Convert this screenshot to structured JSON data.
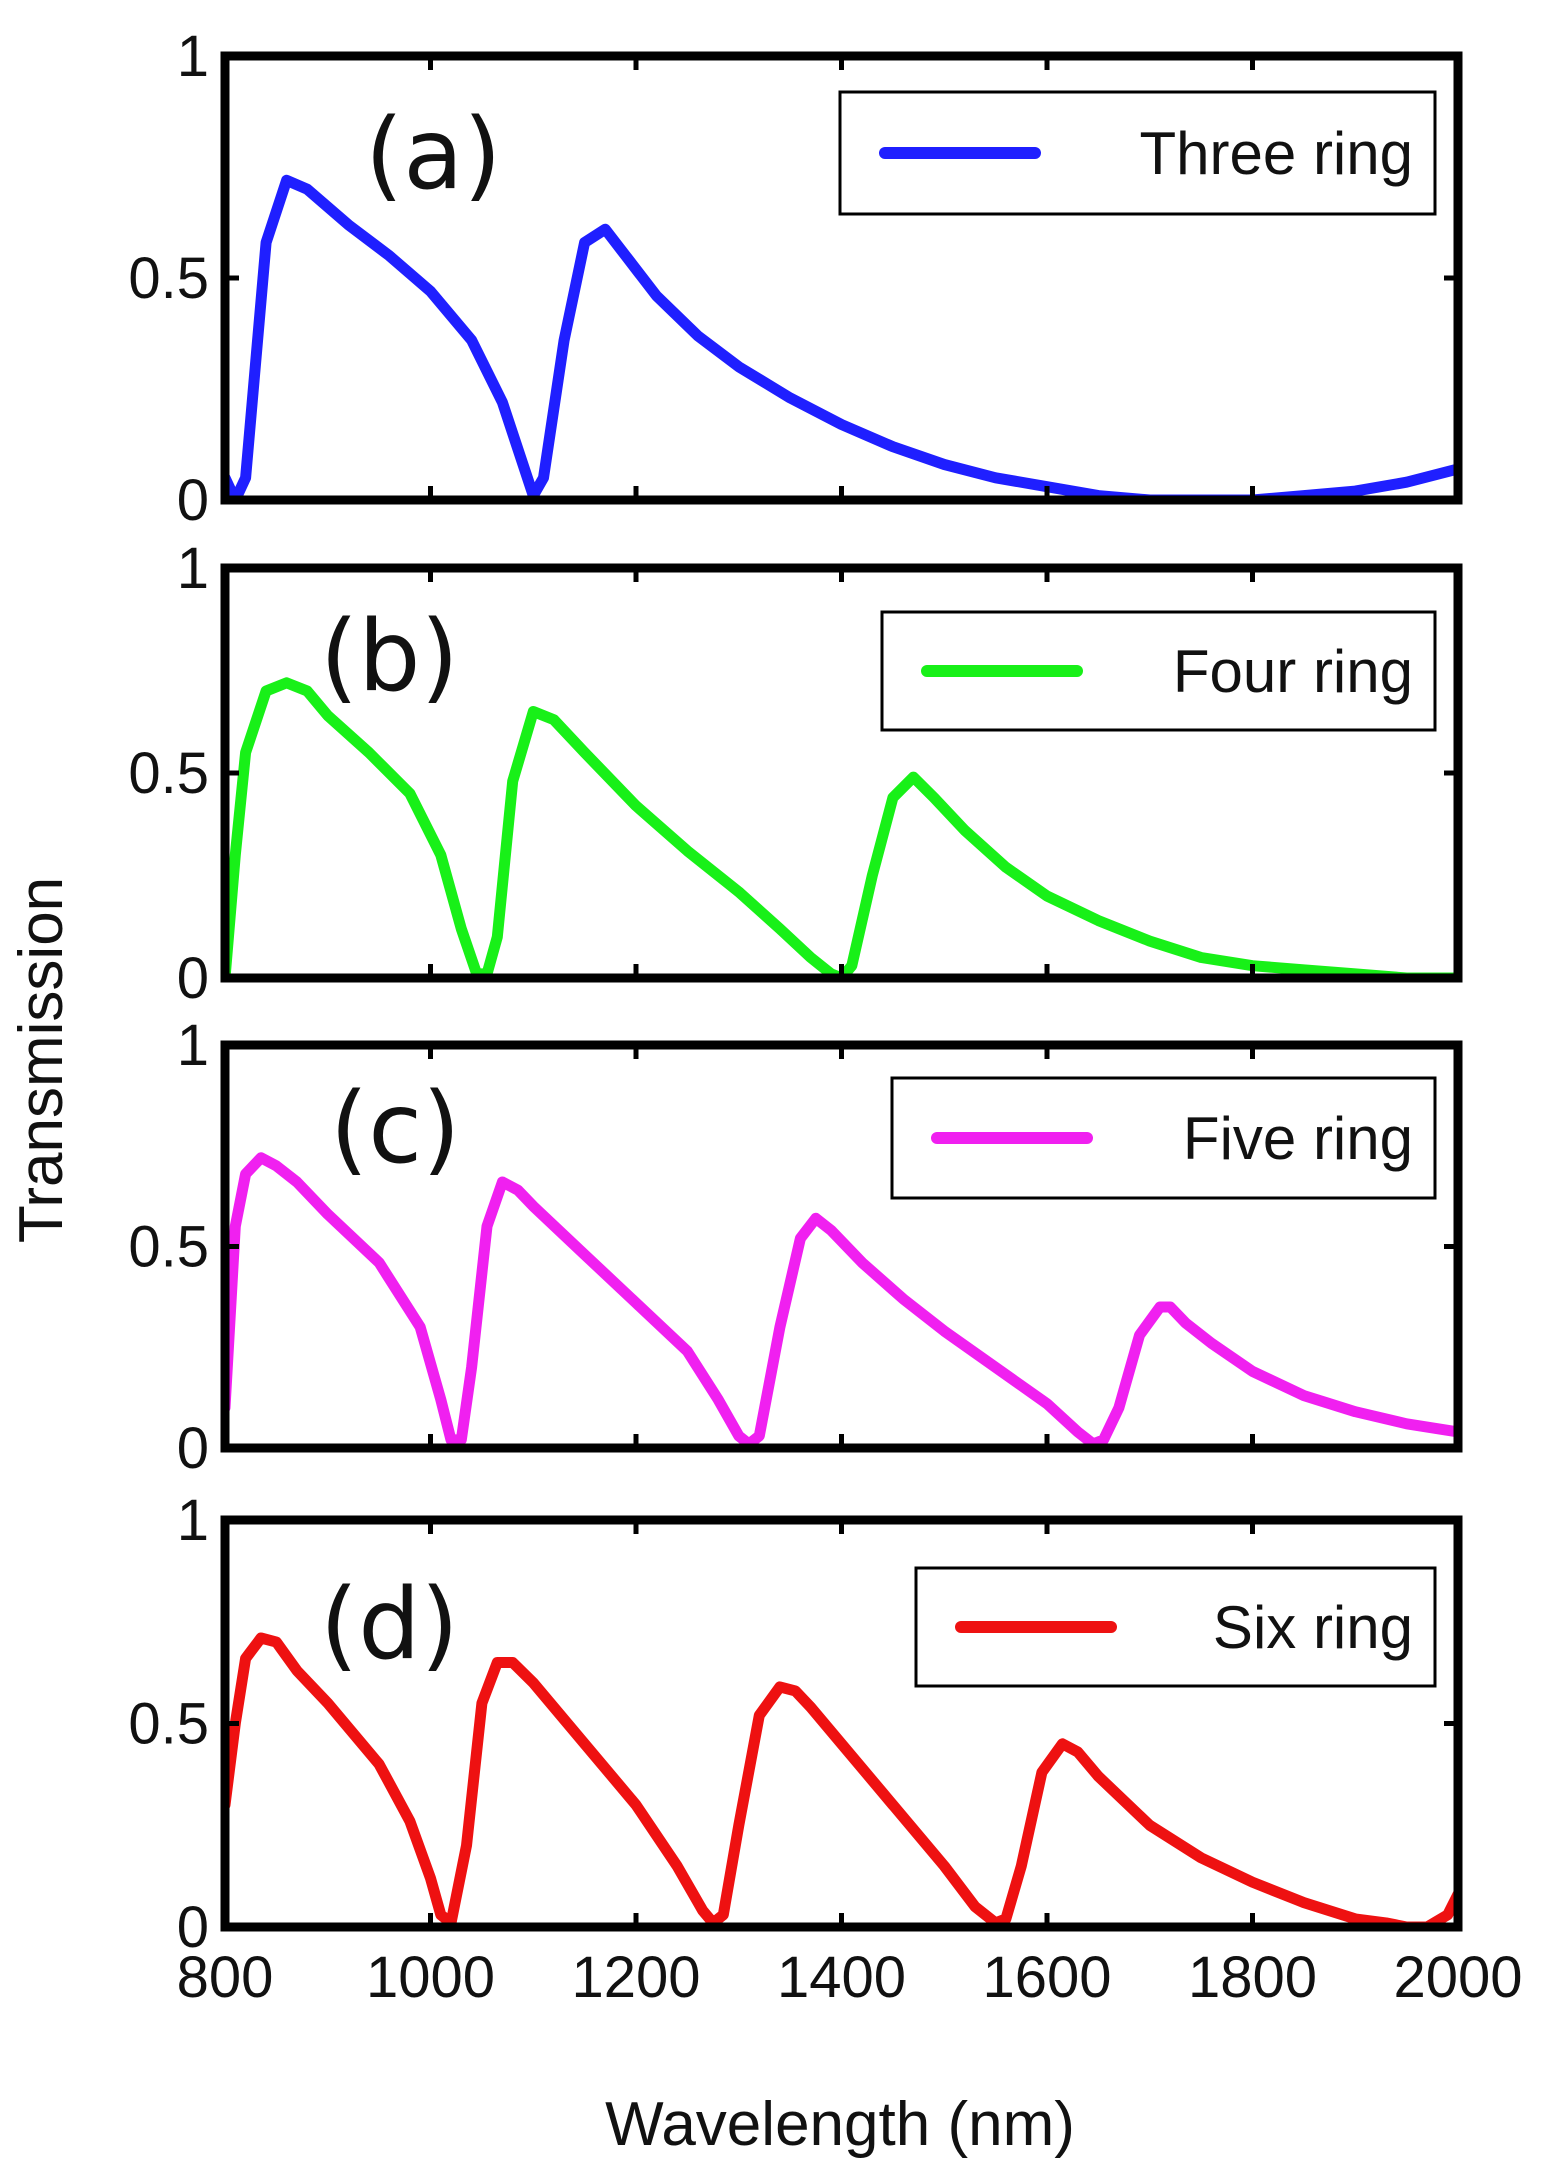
{
  "chart_data": {
    "type": "line",
    "xlabel": "Wavelength (nm)",
    "ylabel": "Transmission",
    "xlim": [
      800,
      2000
    ],
    "ylim": [
      0,
      1
    ],
    "x_ticks": [
      "800",
      "1000",
      "1200",
      "1400",
      "1600",
      "1800",
      "2000"
    ],
    "y_ticks": [
      "0",
      "0.5",
      "1"
    ],
    "panels": [
      {
        "tag": "(a)",
        "legend": "Three ring",
        "color": "#1f1fff",
        "x": [
          800,
          810,
          820,
          840,
          860,
          880,
          920,
          960,
          1000,
          1040,
          1070,
          1090,
          1100,
          1110,
          1130,
          1150,
          1170,
          1190,
          1220,
          1260,
          1300,
          1350,
          1400,
          1450,
          1500,
          1550,
          1600,
          1650,
          1700,
          1750,
          1800,
          1850,
          1900,
          1950,
          2000
        ],
        "y": [
          0.05,
          0.0,
          0.05,
          0.58,
          0.72,
          0.7,
          0.62,
          0.55,
          0.47,
          0.36,
          0.22,
          0.08,
          0.01,
          0.05,
          0.36,
          0.58,
          0.61,
          0.55,
          0.46,
          0.37,
          0.3,
          0.23,
          0.17,
          0.12,
          0.08,
          0.05,
          0.03,
          0.01,
          0.0,
          0.0,
          0.0,
          0.01,
          0.02,
          0.04,
          0.07
        ]
      },
      {
        "tag": "(b)",
        "legend": "Four ring",
        "color": "#18f018",
        "x": [
          800,
          810,
          820,
          840,
          860,
          880,
          900,
          940,
          980,
          1010,
          1030,
          1045,
          1055,
          1065,
          1080,
          1100,
          1120,
          1150,
          1200,
          1250,
          1300,
          1340,
          1370,
          1390,
          1400,
          1410,
          1430,
          1450,
          1470,
          1490,
          1520,
          1560,
          1600,
          1650,
          1700,
          1750,
          1800,
          1850,
          1900,
          1950,
          2000
        ],
        "y": [
          0.0,
          0.3,
          0.55,
          0.7,
          0.72,
          0.7,
          0.64,
          0.55,
          0.45,
          0.3,
          0.12,
          0.01,
          0.01,
          0.1,
          0.48,
          0.65,
          0.63,
          0.55,
          0.42,
          0.31,
          0.21,
          0.12,
          0.05,
          0.01,
          0.0,
          0.03,
          0.25,
          0.44,
          0.49,
          0.44,
          0.36,
          0.27,
          0.2,
          0.14,
          0.09,
          0.05,
          0.03,
          0.02,
          0.01,
          0.0,
          0.0
        ]
      },
      {
        "tag": "(c)",
        "legend": "Five ring",
        "color": "#f020f0",
        "x": [
          800,
          810,
          820,
          835,
          850,
          870,
          900,
          950,
          990,
          1010,
          1020,
          1030,
          1040,
          1055,
          1070,
          1085,
          1100,
          1150,
          1200,
          1250,
          1280,
          1300,
          1310,
          1320,
          1340,
          1360,
          1375,
          1390,
          1420,
          1460,
          1500,
          1550,
          1600,
          1630,
          1645,
          1655,
          1670,
          1690,
          1710,
          1720,
          1735,
          1760,
          1800,
          1850,
          1900,
          1950,
          2000
        ],
        "y": [
          0.1,
          0.55,
          0.68,
          0.72,
          0.7,
          0.66,
          0.58,
          0.46,
          0.3,
          0.12,
          0.02,
          0.02,
          0.2,
          0.55,
          0.66,
          0.64,
          0.6,
          0.48,
          0.36,
          0.24,
          0.12,
          0.03,
          0.01,
          0.03,
          0.3,
          0.52,
          0.57,
          0.54,
          0.46,
          0.37,
          0.29,
          0.2,
          0.11,
          0.04,
          0.01,
          0.02,
          0.1,
          0.28,
          0.35,
          0.35,
          0.31,
          0.26,
          0.19,
          0.13,
          0.09,
          0.06,
          0.04
        ]
      },
      {
        "tag": "(d)",
        "legend": "Six ring",
        "color": "#ee1111",
        "x": [
          800,
          810,
          820,
          835,
          850,
          870,
          900,
          950,
          980,
          1000,
          1010,
          1020,
          1035,
          1050,
          1065,
          1080,
          1100,
          1150,
          1200,
          1240,
          1265,
          1275,
          1285,
          1300,
          1320,
          1340,
          1355,
          1370,
          1400,
          1450,
          1500,
          1530,
          1550,
          1560,
          1575,
          1595,
          1615,
          1630,
          1650,
          1700,
          1750,
          1800,
          1850,
          1900,
          1930,
          1950,
          1970,
          1990,
          2000
        ],
        "y": [
          0.3,
          0.5,
          0.66,
          0.71,
          0.7,
          0.63,
          0.55,
          0.4,
          0.26,
          0.12,
          0.03,
          0.01,
          0.2,
          0.55,
          0.65,
          0.65,
          0.6,
          0.45,
          0.3,
          0.15,
          0.04,
          0.01,
          0.03,
          0.25,
          0.52,
          0.59,
          0.58,
          0.54,
          0.45,
          0.3,
          0.15,
          0.05,
          0.01,
          0.02,
          0.15,
          0.38,
          0.45,
          0.43,
          0.37,
          0.25,
          0.17,
          0.11,
          0.06,
          0.02,
          0.01,
          0.0,
          0.0,
          0.03,
          0.08
        ]
      }
    ]
  }
}
